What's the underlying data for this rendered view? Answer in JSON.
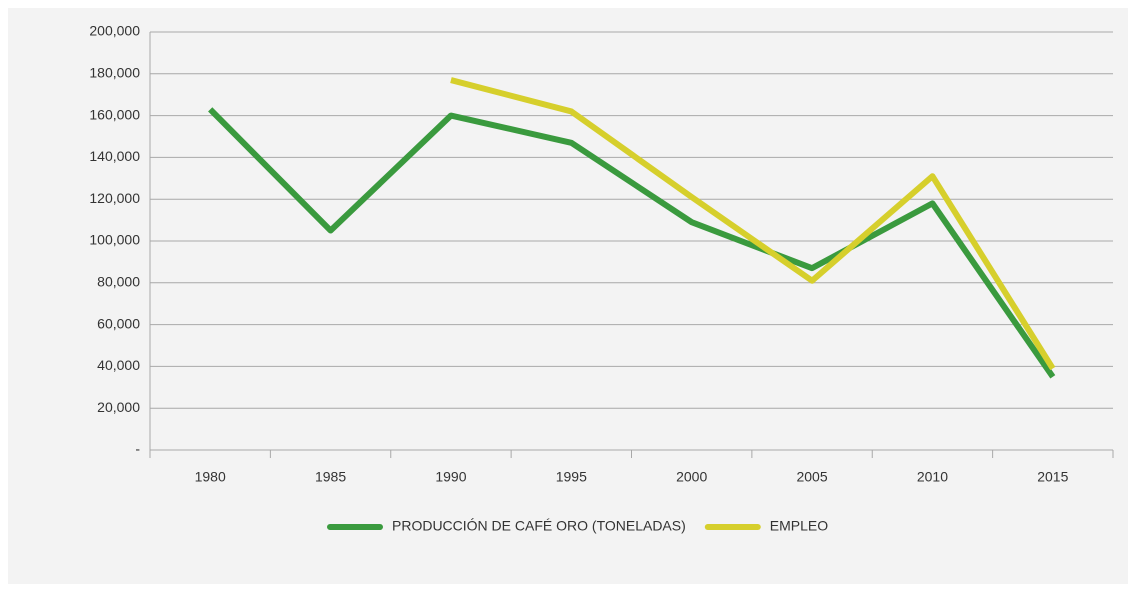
{
  "chart_data": {
    "type": "line",
    "categories": [
      "1980",
      "1985",
      "1990",
      "1995",
      "2000",
      "2005",
      "2010",
      "2015"
    ],
    "series": [
      {
        "name": "PRODUCCIÓN DE CAFÉ ORO (TONELADAS)",
        "color": "#3a9a3e",
        "values": [
          163000,
          105000,
          160000,
          147000,
          109000,
          87000,
          118000,
          35000
        ]
      },
      {
        "name": "EMPLEO",
        "color": "#d6cf2c",
        "values": [
          null,
          null,
          177000,
          162000,
          121000,
          81000,
          131000,
          39000
        ]
      }
    ],
    "ylim": [
      0,
      200000
    ],
    "yticks": [
      {
        "value": 0,
        "label": "-"
      },
      {
        "value": 20000,
        "label": "20,000"
      },
      {
        "value": 40000,
        "label": "40,000"
      },
      {
        "value": 60000,
        "label": "60,000"
      },
      {
        "value": 80000,
        "label": "80,000"
      },
      {
        "value": 100000,
        "label": "100,000"
      },
      {
        "value": 120000,
        "label": "120,000"
      },
      {
        "value": 140000,
        "label": "140,000"
      },
      {
        "value": 160000,
        "label": "160,000"
      },
      {
        "value": 180000,
        "label": "180,000"
      },
      {
        "value": 200000,
        "label": "200,000"
      }
    ],
    "grid": true,
    "legend": "bottom"
  }
}
